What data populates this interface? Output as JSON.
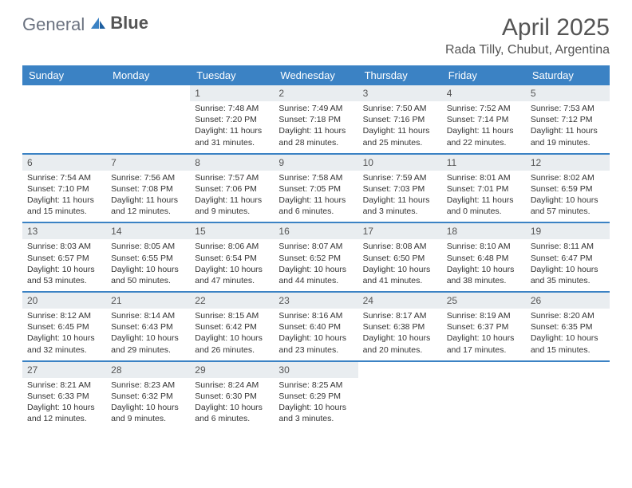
{
  "brand": {
    "text1": "General",
    "text2": "Blue"
  },
  "title": "April 2025",
  "location": "Rada Tilly, Chubut, Argentina",
  "colors": {
    "header_bg": "#3b82c4",
    "header_text": "#ffffff",
    "daynum_bg": "#e9edf0",
    "row_border": "#3b82c4",
    "title_color": "#555555",
    "body_text": "#333333",
    "page_bg": "#ffffff"
  },
  "weekdays": [
    "Sunday",
    "Monday",
    "Tuesday",
    "Wednesday",
    "Thursday",
    "Friday",
    "Saturday"
  ],
  "weeks": [
    [
      null,
      null,
      {
        "n": "1",
        "sunrise": "Sunrise: 7:48 AM",
        "sunset": "Sunset: 7:20 PM",
        "daylight": "Daylight: 11 hours and 31 minutes."
      },
      {
        "n": "2",
        "sunrise": "Sunrise: 7:49 AM",
        "sunset": "Sunset: 7:18 PM",
        "daylight": "Daylight: 11 hours and 28 minutes."
      },
      {
        "n": "3",
        "sunrise": "Sunrise: 7:50 AM",
        "sunset": "Sunset: 7:16 PM",
        "daylight": "Daylight: 11 hours and 25 minutes."
      },
      {
        "n": "4",
        "sunrise": "Sunrise: 7:52 AM",
        "sunset": "Sunset: 7:14 PM",
        "daylight": "Daylight: 11 hours and 22 minutes."
      },
      {
        "n": "5",
        "sunrise": "Sunrise: 7:53 AM",
        "sunset": "Sunset: 7:12 PM",
        "daylight": "Daylight: 11 hours and 19 minutes."
      }
    ],
    [
      {
        "n": "6",
        "sunrise": "Sunrise: 7:54 AM",
        "sunset": "Sunset: 7:10 PM",
        "daylight": "Daylight: 11 hours and 15 minutes."
      },
      {
        "n": "7",
        "sunrise": "Sunrise: 7:56 AM",
        "sunset": "Sunset: 7:08 PM",
        "daylight": "Daylight: 11 hours and 12 minutes."
      },
      {
        "n": "8",
        "sunrise": "Sunrise: 7:57 AM",
        "sunset": "Sunset: 7:06 PM",
        "daylight": "Daylight: 11 hours and 9 minutes."
      },
      {
        "n": "9",
        "sunrise": "Sunrise: 7:58 AM",
        "sunset": "Sunset: 7:05 PM",
        "daylight": "Daylight: 11 hours and 6 minutes."
      },
      {
        "n": "10",
        "sunrise": "Sunrise: 7:59 AM",
        "sunset": "Sunset: 7:03 PM",
        "daylight": "Daylight: 11 hours and 3 minutes."
      },
      {
        "n": "11",
        "sunrise": "Sunrise: 8:01 AM",
        "sunset": "Sunset: 7:01 PM",
        "daylight": "Daylight: 11 hours and 0 minutes."
      },
      {
        "n": "12",
        "sunrise": "Sunrise: 8:02 AM",
        "sunset": "Sunset: 6:59 PM",
        "daylight": "Daylight: 10 hours and 57 minutes."
      }
    ],
    [
      {
        "n": "13",
        "sunrise": "Sunrise: 8:03 AM",
        "sunset": "Sunset: 6:57 PM",
        "daylight": "Daylight: 10 hours and 53 minutes."
      },
      {
        "n": "14",
        "sunrise": "Sunrise: 8:05 AM",
        "sunset": "Sunset: 6:55 PM",
        "daylight": "Daylight: 10 hours and 50 minutes."
      },
      {
        "n": "15",
        "sunrise": "Sunrise: 8:06 AM",
        "sunset": "Sunset: 6:54 PM",
        "daylight": "Daylight: 10 hours and 47 minutes."
      },
      {
        "n": "16",
        "sunrise": "Sunrise: 8:07 AM",
        "sunset": "Sunset: 6:52 PM",
        "daylight": "Daylight: 10 hours and 44 minutes."
      },
      {
        "n": "17",
        "sunrise": "Sunrise: 8:08 AM",
        "sunset": "Sunset: 6:50 PM",
        "daylight": "Daylight: 10 hours and 41 minutes."
      },
      {
        "n": "18",
        "sunrise": "Sunrise: 8:10 AM",
        "sunset": "Sunset: 6:48 PM",
        "daylight": "Daylight: 10 hours and 38 minutes."
      },
      {
        "n": "19",
        "sunrise": "Sunrise: 8:11 AM",
        "sunset": "Sunset: 6:47 PM",
        "daylight": "Daylight: 10 hours and 35 minutes."
      }
    ],
    [
      {
        "n": "20",
        "sunrise": "Sunrise: 8:12 AM",
        "sunset": "Sunset: 6:45 PM",
        "daylight": "Daylight: 10 hours and 32 minutes."
      },
      {
        "n": "21",
        "sunrise": "Sunrise: 8:14 AM",
        "sunset": "Sunset: 6:43 PM",
        "daylight": "Daylight: 10 hours and 29 minutes."
      },
      {
        "n": "22",
        "sunrise": "Sunrise: 8:15 AM",
        "sunset": "Sunset: 6:42 PM",
        "daylight": "Daylight: 10 hours and 26 minutes."
      },
      {
        "n": "23",
        "sunrise": "Sunrise: 8:16 AM",
        "sunset": "Sunset: 6:40 PM",
        "daylight": "Daylight: 10 hours and 23 minutes."
      },
      {
        "n": "24",
        "sunrise": "Sunrise: 8:17 AM",
        "sunset": "Sunset: 6:38 PM",
        "daylight": "Daylight: 10 hours and 20 minutes."
      },
      {
        "n": "25",
        "sunrise": "Sunrise: 8:19 AM",
        "sunset": "Sunset: 6:37 PM",
        "daylight": "Daylight: 10 hours and 17 minutes."
      },
      {
        "n": "26",
        "sunrise": "Sunrise: 8:20 AM",
        "sunset": "Sunset: 6:35 PM",
        "daylight": "Daylight: 10 hours and 15 minutes."
      }
    ],
    [
      {
        "n": "27",
        "sunrise": "Sunrise: 8:21 AM",
        "sunset": "Sunset: 6:33 PM",
        "daylight": "Daylight: 10 hours and 12 minutes."
      },
      {
        "n": "28",
        "sunrise": "Sunrise: 8:23 AM",
        "sunset": "Sunset: 6:32 PM",
        "daylight": "Daylight: 10 hours and 9 minutes."
      },
      {
        "n": "29",
        "sunrise": "Sunrise: 8:24 AM",
        "sunset": "Sunset: 6:30 PM",
        "daylight": "Daylight: 10 hours and 6 minutes."
      },
      {
        "n": "30",
        "sunrise": "Sunrise: 8:25 AM",
        "sunset": "Sunset: 6:29 PM",
        "daylight": "Daylight: 10 hours and 3 minutes."
      },
      null,
      null,
      null
    ]
  ]
}
